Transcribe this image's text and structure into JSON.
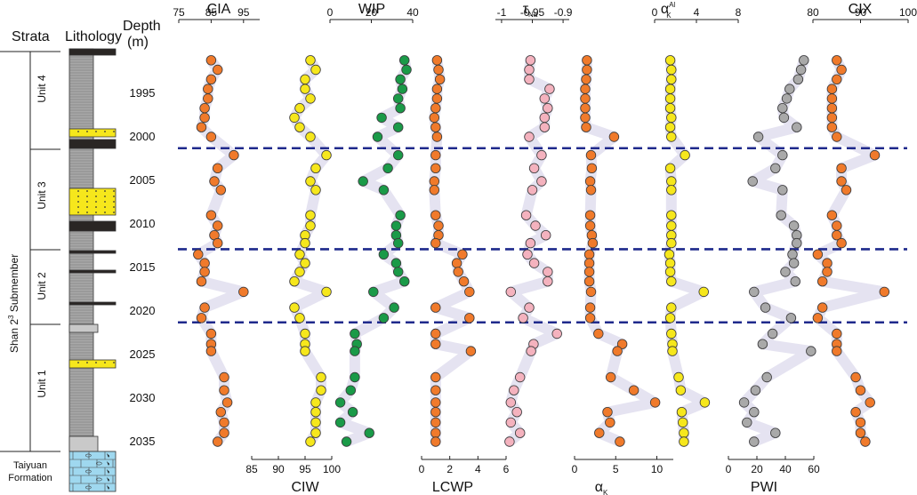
{
  "header": {
    "strata": "Strata",
    "lithology": "Lithology",
    "depth_line1": "Depth",
    "depth_line2": "(m)"
  },
  "strata": {
    "formation_main_a": "Shan 2",
    "formation_main_sup": "3",
    "formation_main_b": " Submember",
    "units": [
      "Unit 4",
      "Unit 3",
      "Unit 2",
      "Unit 1"
    ],
    "base_formation_line1": "Taiyuan",
    "base_formation_line2": "Formation"
  },
  "colors": {
    "orange": "#f07a2b",
    "yellow": "#f6e71c",
    "green": "#1a9a48",
    "pink": "#f4b2be",
    "gray": "#a9a9a9",
    "trend": "#e5e3f1",
    "divider": "#1f2a8c",
    "lith_gray": "#a8a8a8",
    "lith_coal": "#2a2624",
    "lith_sand": "#f6e71c",
    "lith_lime": "#9fd8ef"
  },
  "chart_data": {
    "type": "scatter",
    "depth_axis": {
      "label": "Depth (m)",
      "range": [
        1990,
        2037
      ],
      "ticks": [
        1995,
        2000,
        2005,
        2010,
        2015,
        2020,
        2025,
        2030,
        2035
      ]
    },
    "unit_boundaries": [
      2001.3,
      2012.9,
      2021.3
    ],
    "depths": [
      1991.2,
      1992.3,
      1993.4,
      1994.5,
      1995.6,
      1996.7,
      1997.8,
      1998.9,
      2000.0,
      2002.1,
      2003.6,
      2005.1,
      2006.1,
      2009.0,
      2010.2,
      2011.3,
      2012.2,
      2013.5,
      2014.5,
      2015.5,
      2016.6,
      2017.8,
      2019.6,
      2020.8,
      2022.6,
      2023.8,
      2024.6,
      2027.6,
      2029.1,
      2030.5,
      2031.6,
      2032.8,
      2034.0,
      2035.0
    ],
    "series": [
      {
        "name": "CIA",
        "title": "CIA",
        "axis": "top",
        "range": [
          75,
          100
        ],
        "ticks": [
          75,
          85,
          95
        ],
        "color": "orange",
        "values": [
          85,
          87,
          85,
          84,
          84,
          83,
          83,
          82,
          85,
          92,
          87,
          86,
          88,
          85,
          87,
          86,
          87,
          81,
          83,
          83,
          82,
          95,
          83,
          82,
          85,
          85,
          85,
          89,
          89,
          90,
          88,
          89,
          89,
          87
        ]
      },
      {
        "name": "WIP",
        "title": "WIP",
        "axis": "top",
        "range": [
          0,
          40
        ],
        "ticks": [
          0,
          20,
          40
        ],
        "color": "green",
        "values": [
          36,
          37,
          34,
          35,
          33,
          34,
          25,
          33,
          23,
          33,
          28,
          16,
          26,
          34,
          32,
          32,
          33,
          26,
          32,
          33,
          36,
          21,
          31,
          26,
          12,
          13,
          12,
          12,
          10,
          5,
          11,
          5,
          19,
          8
        ]
      },
      {
        "name": "tau_Na",
        "title": "τ",
        "title_sub": "Na",
        "axis": "top",
        "range": [
          -1.01,
          -0.89
        ],
        "ticks": [
          -1,
          -0.95,
          -0.9
        ],
        "color": "pink",
        "values": [
          -0.953,
          -0.955,
          -0.955,
          -0.922,
          -0.93,
          -0.925,
          -0.93,
          -0.93,
          -0.955,
          -0.935,
          -0.947,
          -0.935,
          -0.95,
          -0.96,
          -0.945,
          -0.928,
          -0.953,
          -0.958,
          -0.947,
          -0.925,
          -0.925,
          -0.985,
          -0.955,
          -0.965,
          -0.91,
          -0.948,
          -0.952,
          -0.97,
          -0.98,
          -0.985,
          -0.975,
          -0.985,
          -0.97,
          -0.987
        ]
      },
      {
        "name": "alpha_K_Al",
        "title": "α",
        "title_sup": "Al",
        "title_sub": "K",
        "axis": "top",
        "range": [
          0,
          8
        ],
        "ticks": [
          0,
          4,
          8
        ],
        "color": "yellow",
        "values": [
          1.5,
          1.6,
          1.6,
          1.5,
          1.5,
          1.5,
          1.6,
          1.5,
          1.6,
          2.9,
          1.5,
          1.6,
          1.6,
          1.6,
          1.6,
          1.6,
          1.6,
          1.4,
          1.5,
          1.5,
          1.6,
          4.7,
          1.6,
          1.5,
          1.6,
          1.7,
          1.7,
          2.3,
          2.5,
          4.8,
          2.6,
          2.7,
          2.8,
          2.8
        ]
      },
      {
        "name": "CIX",
        "title": "CIX",
        "axis": "top",
        "range": [
          80,
          100
        ],
        "ticks": [
          80,
          90,
          100
        ],
        "color": "orange",
        "values": [
          85,
          86,
          85,
          84,
          84,
          84,
          84,
          84,
          85,
          93,
          86,
          86,
          87,
          84,
          85,
          85,
          86,
          81,
          83,
          83,
          82,
          95,
          82,
          81,
          85,
          85,
          85,
          89,
          90,
          92,
          89,
          90,
          90,
          91
        ]
      },
      {
        "name": "CIW",
        "title": "CIW",
        "axis": "bottom",
        "range": [
          85,
          100
        ],
        "ticks": [
          85,
          90,
          95,
          100
        ],
        "color": "yellow",
        "values": [
          96,
          97,
          95,
          95,
          96,
          94,
          93,
          94,
          96,
          99,
          97,
          96,
          97,
          96,
          96,
          95,
          95,
          94,
          95,
          94,
          93,
          99,
          93,
          94,
          95,
          95,
          95,
          98,
          98,
          97,
          97,
          97,
          97,
          96
        ]
      },
      {
        "name": "LCWP",
        "title": "LCWP",
        "axis": "bottom",
        "range": [
          0,
          6
        ],
        "ticks": [
          0,
          2,
          4,
          6
        ],
        "color": "orange",
        "values": [
          1.1,
          1.2,
          1.3,
          1.1,
          1.1,
          1.0,
          0.9,
          1.0,
          1.1,
          1.0,
          1.0,
          0.9,
          0.9,
          1.0,
          1.2,
          1.2,
          1.0,
          2.9,
          2.5,
          2.6,
          3.0,
          3.4,
          1.0,
          3.4,
          1.0,
          1.0,
          3.5,
          1.0,
          1.0,
          1.0,
          1.0,
          1.0,
          1.0,
          1.0
        ]
      },
      {
        "name": "alpha_K",
        "title": "α",
        "title_sub": "K",
        "axis": "bottom",
        "range": [
          0,
          12
        ],
        "ticks": [
          0,
          5,
          10
        ],
        "color": "orange",
        "values": [
          1.5,
          1.5,
          1.4,
          1.3,
          1.3,
          1.3,
          1.3,
          1.4,
          4.8,
          2.0,
          2.1,
          1.9,
          2.0,
          1.9,
          1.9,
          2.1,
          2.2,
          1.8,
          1.8,
          1.8,
          1.8,
          2.0,
          1.9,
          1.9,
          2.9,
          5.8,
          5.2,
          4.4,
          7.2,
          9.8,
          4.0,
          4.3,
          3.0,
          5.5
        ]
      },
      {
        "name": "PWI",
        "title": "PWI",
        "axis": "bottom",
        "range": [
          0,
          60
        ],
        "ticks": [
          0,
          20,
          40,
          60
        ],
        "color": "gray",
        "values": [
          53,
          51,
          49,
          43,
          41,
          38,
          39,
          48,
          21,
          38,
          33,
          17,
          38,
          37,
          46,
          48,
          48,
          45,
          46,
          40,
          47,
          18,
          26,
          44,
          31,
          24,
          58,
          27,
          19,
          11,
          18,
          13,
          33,
          18
        ]
      }
    ]
  }
}
